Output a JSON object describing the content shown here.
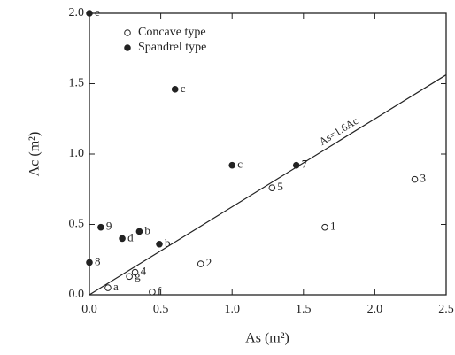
{
  "chart_data": {
    "type": "scatter",
    "xlabel": "As (m²)",
    "ylabel": "Ac (m²)",
    "xlim": [
      0,
      2.5
    ],
    "ylim": [
      0,
      2.0
    ],
    "xticks": [
      {
        "value": 0,
        "label": "0.0"
      },
      0.5,
      {
        "value": 1,
        "label": "1.0"
      },
      1.5,
      {
        "value": 2,
        "label": "2.0"
      },
      2.5
    ],
    "yticks": [
      {
        "value": 0,
        "label": "0.0"
      },
      0.5,
      {
        "value": 1,
        "label": "1.0"
      },
      1.5,
      {
        "value": 2,
        "label": "2.0"
      }
    ],
    "legend": "upper left",
    "series": [
      {
        "name": "Concave type",
        "color": "#222",
        "marker": "open",
        "x": [
          1.28,
          1.65,
          2.28,
          0.78,
          0.32,
          0.13,
          0.28,
          0.44
        ],
        "values": [
          0.76,
          0.48,
          0.82,
          0.22,
          0.16,
          0.05,
          0.13,
          0.02
        ],
        "labels": [
          "5",
          "1",
          "3",
          "2",
          "4",
          "a",
          "g",
          "f"
        ]
      },
      {
        "name": "Spandrel type",
        "color": "#222",
        "marker": "filled",
        "x": [
          0.0,
          0.6,
          1.0,
          1.45,
          0.08,
          0.23,
          0.35,
          0.49,
          0.0
        ],
        "values": [
          2.0,
          1.46,
          0.92,
          0.92,
          0.48,
          0.4,
          0.45,
          0.36,
          0.23
        ],
        "labels": [
          "e",
          "c",
          "c",
          "7",
          "9",
          "d",
          "b",
          "b",
          "8"
        ]
      }
    ],
    "fit_line": {
      "label": "As=1.6Ac",
      "x": [
        0,
        2.5
      ],
      "y": [
        0,
        1.5625
      ]
    }
  }
}
